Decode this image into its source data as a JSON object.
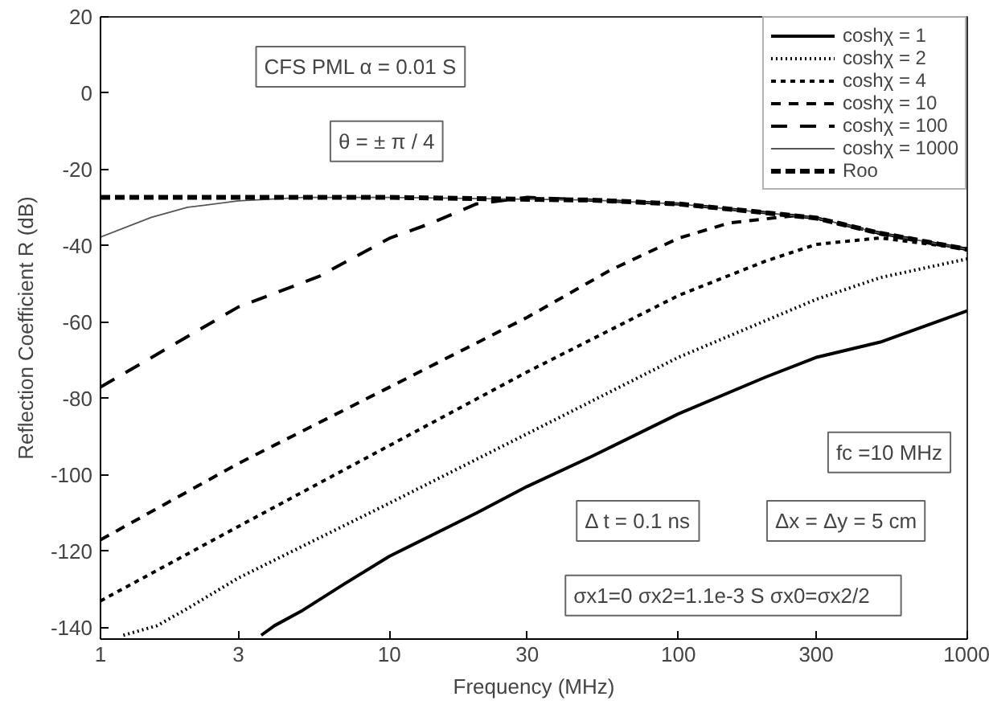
{
  "chart_data": {
    "type": "line",
    "xlabel": "Frequency (MHz)",
    "ylabel": "Reflection Coefficient R (dB)",
    "log": "x",
    "xlim": [
      1,
      1000
    ],
    "xticks": [
      1,
      3,
      10,
      30,
      100,
      300,
      1000
    ],
    "ylim": [
      -143,
      20
    ],
    "yticks": [
      -140,
      -120,
      -100,
      -80,
      -60,
      -40,
      -20,
      0,
      20
    ],
    "grid": false,
    "legend": "top right",
    "annotations": [
      "CFS PML α = 0.01 S",
      "θ = ± π / 4",
      "fc =10 MHz",
      "Δ t = 0.1 ns",
      "Δx = Δy = 5 cm",
      "σx1=0   σx2=1.1e-3 S   σx0=σx2/2"
    ],
    "series": [
      {
        "name": "coshχ = 1",
        "color": "#000000",
        "line_style": "solid",
        "x": [
          3.6,
          4,
          5,
          7,
          10,
          20,
          30,
          50,
          100,
          200,
          300,
          500,
          1000
        ],
        "values": [
          -142,
          -139.5,
          -135.5,
          -128.5,
          -121.3,
          -110,
          -103,
          -95.2,
          -84,
          -74.4,
          -69.2,
          -65.2,
          -57
        ]
      },
      {
        "name": "coshχ = 2",
        "color": "#000000",
        "line_style": "dotted",
        "x": [
          1.2,
          1.57,
          2,
          3,
          10,
          30,
          100,
          300,
          500,
          1000
        ],
        "values": [
          -142,
          -139.5,
          -135,
          -127,
          -107.4,
          -89.2,
          -69.2,
          -54,
          -48.3,
          -43.4
        ]
      },
      {
        "name": "coshχ = 4",
        "color": "#000000",
        "line_style": "dashed",
        "x": [
          1,
          3,
          10,
          30,
          100,
          200,
          300,
          500,
          1000
        ],
        "values": [
          -133,
          -113.5,
          -92.3,
          -73,
          -53,
          -44,
          -39.6,
          -37.9,
          -40.8
        ]
      },
      {
        "name": "coshχ = 10",
        "color": "#000000",
        "line_style": "dashed",
        "x": [
          1,
          3,
          10,
          30,
          58,
          100,
          150,
          250,
          300,
          500,
          1000
        ],
        "values": [
          -117,
          -97,
          -77,
          -58.7,
          -46.4,
          -38,
          -34,
          -32.1,
          -32.7,
          -36.7,
          -40.9
        ]
      },
      {
        "name": "coshχ = 100",
        "color": "#000000",
        "line_style": "dashed",
        "x": [
          1,
          3,
          5.7,
          10,
          14,
          20,
          30,
          50,
          100,
          200,
          300,
          500,
          1000
        ],
        "values": [
          -77,
          -56,
          -48,
          -38,
          -34,
          -29,
          -27.3,
          -28,
          -29,
          -31.3,
          -32.7,
          -36.7,
          -40.9
        ]
      },
      {
        "name": "coshχ = 1000",
        "color": "#555555",
        "line_style": "solid",
        "x": [
          1,
          1.5,
          2,
          3,
          5,
          10,
          50,
          100,
          200,
          300,
          500,
          1000
        ],
        "values": [
          -37.7,
          -32.5,
          -29.9,
          -28.2,
          -27.3,
          -27.3,
          -28,
          -29,
          -31.3,
          -32.7,
          -36.7,
          -40.9
        ]
      },
      {
        "name": "Roo",
        "color": "#000000",
        "line_style": "dashed",
        "x": [
          1,
          10,
          50,
          100,
          200,
          300,
          500,
          1000
        ],
        "values": [
          -27.3,
          -27.3,
          -28,
          -29,
          -31.3,
          -32.7,
          -36.7,
          -40.9
        ]
      }
    ]
  }
}
